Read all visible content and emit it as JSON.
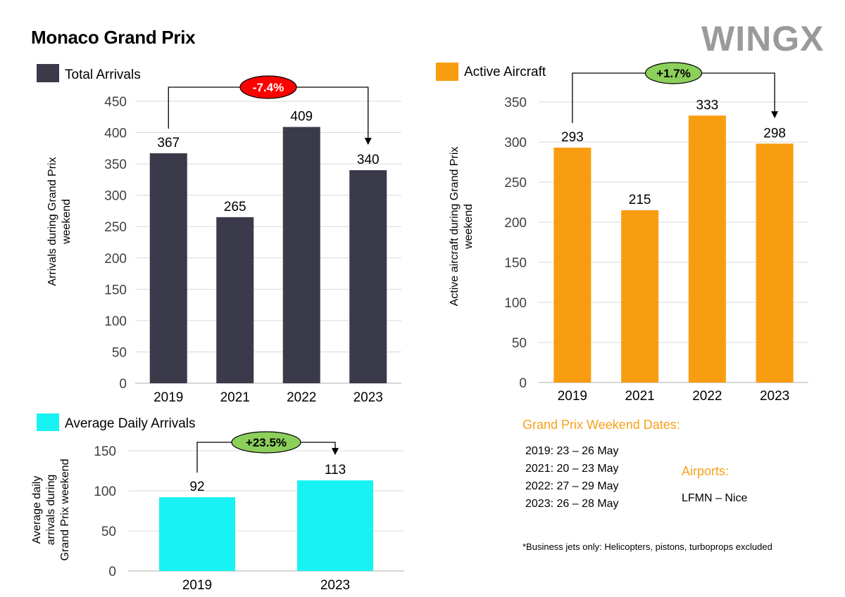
{
  "page": {
    "title": "Monaco Grand Prix",
    "logo_text": "WINGX"
  },
  "colors": {
    "arrivals": "#3b3a4a",
    "aircraft": "#f99d10",
    "daily": "#19f2f2",
    "badge_negative": "#ff0000",
    "badge_positive": "#8ccf5b",
    "grid": "#d9d9d9",
    "axis": "#bfbfbf",
    "tick_text": "#404040",
    "info_heading": "#f7a11b"
  },
  "chart_data": [
    {
      "id": "total",
      "type": "bar",
      "title": "",
      "legend": "Total Arrivals",
      "ylabel": "Arrivals during Grand Prix weekend",
      "xlabel": "",
      "categories": [
        "2019",
        "2021",
        "2022",
        "2023"
      ],
      "values": [
        367,
        265,
        409,
        340
      ],
      "ylim": [
        0,
        450
      ],
      "ticks": [
        0,
        50,
        100,
        150,
        200,
        250,
        300,
        350,
        400,
        450
      ],
      "grid": true,
      "change": {
        "label": "-7.4%",
        "from": "2019",
        "to": "2023"
      }
    },
    {
      "id": "aircraft",
      "type": "bar",
      "title": "",
      "legend": "Active Aircraft",
      "ylabel": "Active aircraft during Grand Prix weekend",
      "xlabel": "",
      "categories": [
        "2019",
        "2021",
        "2022",
        "2023"
      ],
      "values": [
        293,
        215,
        333,
        298
      ],
      "ylim": [
        0,
        350
      ],
      "ticks": [
        0,
        50,
        100,
        150,
        200,
        250,
        300,
        350
      ],
      "grid": true,
      "change": {
        "label": "+1.7%",
        "from": "2019",
        "to": "2023"
      }
    },
    {
      "id": "daily",
      "type": "bar",
      "title": "",
      "legend": "Average Daily Arrivals",
      "ylabel": "Average daily arrivals during Grand Prix weekend",
      "xlabel": "",
      "categories": [
        "2019",
        "2023"
      ],
      "values": [
        92,
        113
      ],
      "ylim": [
        0,
        150
      ],
      "ticks": [
        0,
        50,
        100,
        150
      ],
      "grid": true,
      "change": {
        "label": "+23.5%",
        "from": "2019",
        "to": "2023"
      }
    }
  ],
  "info": {
    "dates_heading": "Grand Prix Weekend Dates:",
    "dates": [
      "2019: 23 – 26 May",
      "2021: 20 – 23 May",
      "2022: 27 – 29 May",
      "2023: 26 – 28 May"
    ],
    "airports_heading": "Airports:",
    "airports": [
      "LFMN – Nice"
    ],
    "footnote": "*Business jets only: Helicopters, pistons, turboprops excluded"
  }
}
